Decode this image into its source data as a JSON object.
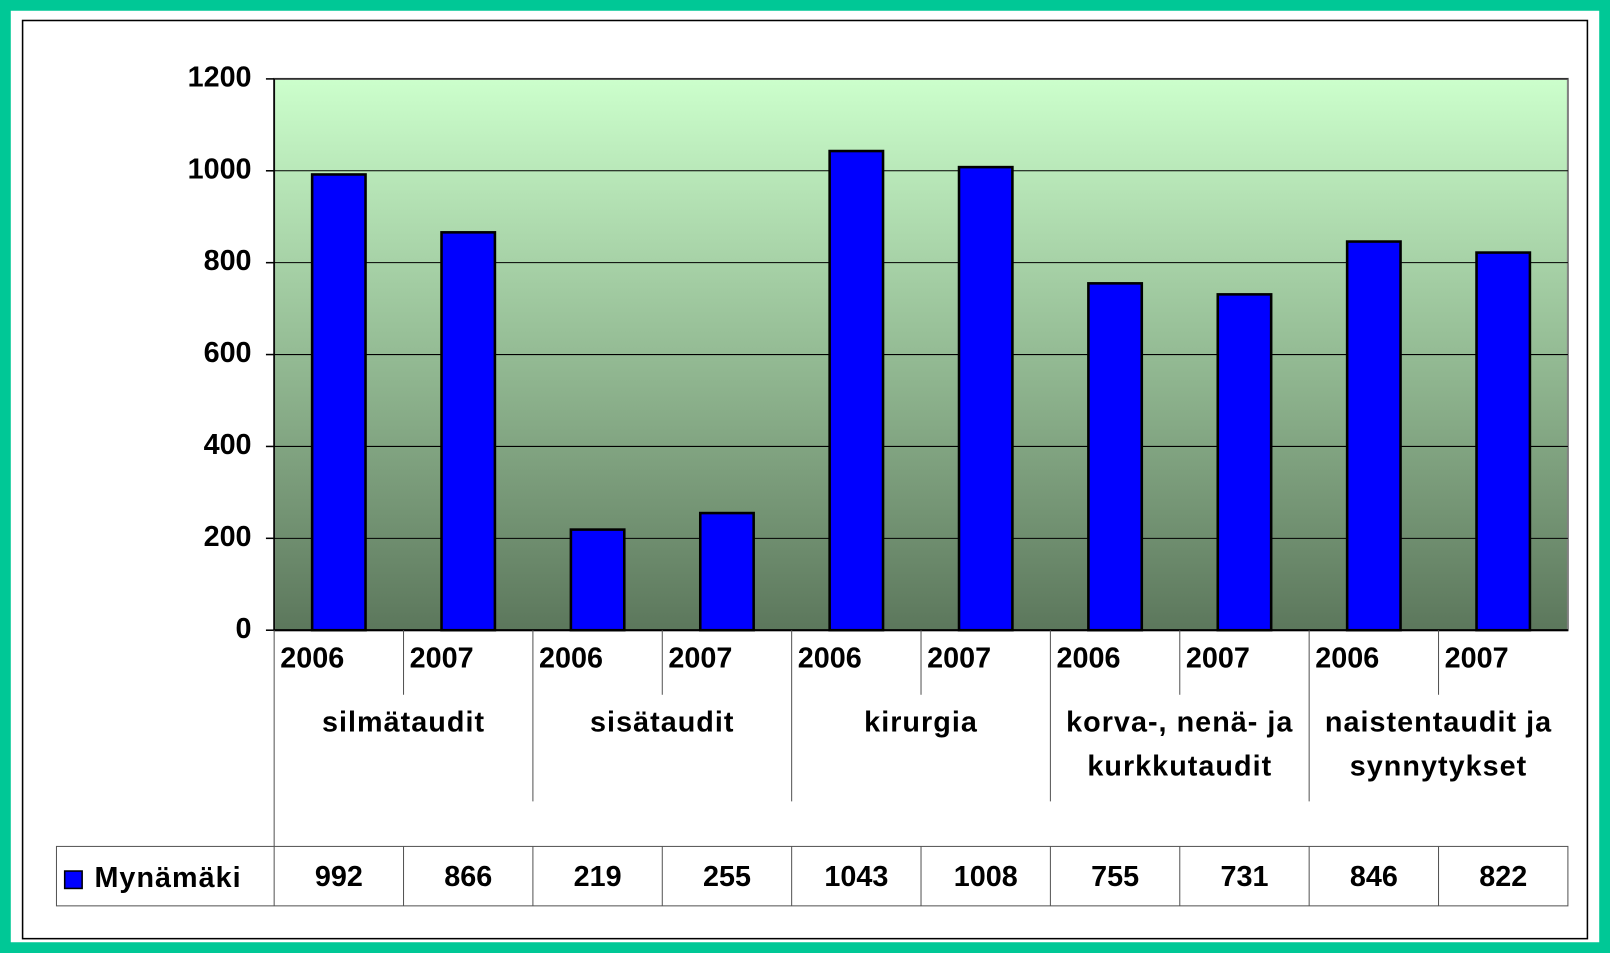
{
  "chart_data": {
    "type": "bar",
    "categories": [
      "2006",
      "2007",
      "2006",
      "2007",
      "2006",
      "2007",
      "2006",
      "2007",
      "2006",
      "2007"
    ],
    "groups": [
      "silmätaudit",
      "sisätaudit",
      "kirurgia",
      "korva-, nenä- ja kurkkutaudit",
      "naistentaudit ja synnytykset"
    ],
    "series": [
      {
        "name": "Mynämäki",
        "color": "#0000ff",
        "values": [
          992,
          866,
          219,
          255,
          1043,
          1008,
          755,
          731,
          846,
          822
        ]
      }
    ],
    "ylim": [
      0,
      1200
    ],
    "yticks": [
      0,
      200,
      400,
      600,
      800,
      1000,
      1200
    ],
    "grid": true,
    "data_table": true
  }
}
